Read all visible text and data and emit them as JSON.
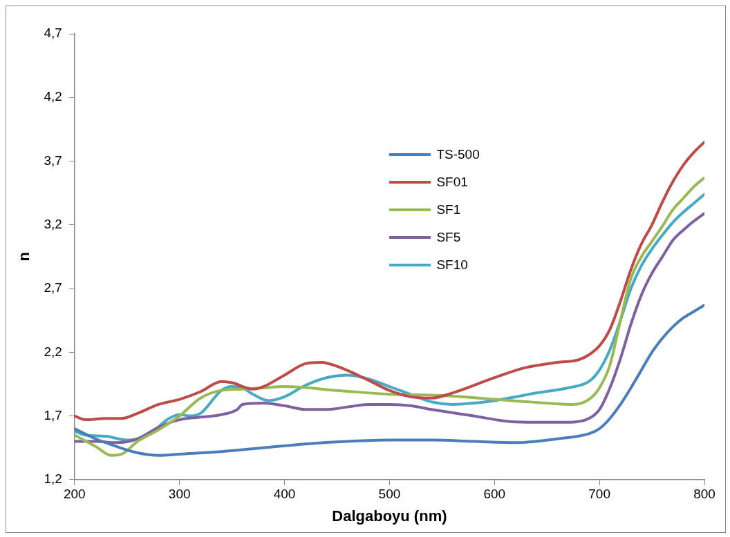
{
  "chart_data": {
    "type": "line",
    "xlabel": "Dalgaboyu (nm)",
    "ylabel": "n",
    "xlim": [
      200,
      800
    ],
    "xticks": [
      200,
      300,
      400,
      500,
      600,
      700,
      800
    ],
    "ylim": [
      1.2,
      4.7
    ],
    "yticks": [
      {
        "value": 1.2,
        "label": "1,2"
      },
      {
        "value": 1.7,
        "label": "1,7"
      },
      {
        "value": 2.2,
        "label": "2,2"
      },
      {
        "value": 2.7,
        "label": "2,7"
      },
      {
        "value": 3.2,
        "label": "3,2"
      },
      {
        "value": 3.7,
        "label": "3,7"
      },
      {
        "value": 4.2,
        "label": "4,2"
      },
      {
        "value": 4.7,
        "label": "4,7"
      }
    ],
    "grid": false,
    "legend": "top right",
    "marker": "none",
    "line_style": "solid",
    "series": [
      {
        "name": "TS-500",
        "color": "#4a7ebb",
        "x": [
          200,
          220,
          240,
          260,
          280,
          300,
          340,
          380,
          420,
          460,
          500,
          540,
          580,
          620,
          660,
          690,
          700,
          710,
          720,
          730,
          740,
          750,
          760,
          770,
          780,
          790,
          800
        ],
        "values": [
          1.6,
          1.52,
          1.46,
          1.41,
          1.39,
          1.4,
          1.42,
          1.45,
          1.48,
          1.5,
          1.51,
          1.51,
          1.5,
          1.49,
          1.52,
          1.56,
          1.6,
          1.68,
          1.79,
          1.92,
          2.06,
          2.2,
          2.31,
          2.4,
          2.47,
          2.52,
          2.57
        ]
      },
      {
        "name": "SF01",
        "color": "#be4b48",
        "x": [
          200,
          210,
          230,
          245,
          260,
          280,
          300,
          320,
          340,
          350,
          370,
          380,
          400,
          420,
          435,
          450,
          480,
          500,
          520,
          540,
          560,
          600,
          630,
          660,
          680,
          690,
          700,
          710,
          720,
          730,
          740,
          750,
          760,
          770,
          780,
          790,
          800
        ],
        "values": [
          1.7,
          1.67,
          1.68,
          1.68,
          1.72,
          1.79,
          1.83,
          1.89,
          1.97,
          1.96,
          1.91,
          1.93,
          2.02,
          2.11,
          2.12,
          2.09,
          1.98,
          1.9,
          1.85,
          1.84,
          1.88,
          2.0,
          2.08,
          2.12,
          2.14,
          2.18,
          2.25,
          2.38,
          2.6,
          2.85,
          3.05,
          3.2,
          3.38,
          3.54,
          3.67,
          3.77,
          3.85
        ]
      },
      {
        "name": "SF1",
        "color": "#98b954",
        "x": [
          200,
          220,
          235,
          245,
          260,
          280,
          300,
          320,
          340,
          360,
          380,
          400,
          450,
          500,
          550,
          600,
          650,
          675,
          690,
          700,
          710,
          720,
          730,
          740,
          750,
          760,
          770,
          780,
          790,
          800
        ],
        "values": [
          1.55,
          1.46,
          1.39,
          1.4,
          1.5,
          1.59,
          1.7,
          1.84,
          1.9,
          1.91,
          1.92,
          1.93,
          1.9,
          1.87,
          1.86,
          1.83,
          1.8,
          1.79,
          1.83,
          1.92,
          2.1,
          2.45,
          2.78,
          2.95,
          3.07,
          3.19,
          3.32,
          3.41,
          3.5,
          3.57
        ]
      },
      {
        "name": "SF5",
        "color": "#7d60a0",
        "x": [
          200,
          220,
          240,
          260,
          280,
          300,
          320,
          340,
          355,
          360,
          380,
          400,
          420,
          440,
          460,
          480,
          500,
          520,
          540,
          580,
          610,
          640,
          670,
          690,
          700,
          710,
          720,
          730,
          740,
          750,
          760,
          770,
          780,
          790,
          800
        ],
        "values": [
          1.5,
          1.5,
          1.49,
          1.52,
          1.61,
          1.67,
          1.69,
          1.71,
          1.75,
          1.79,
          1.8,
          1.78,
          1.75,
          1.75,
          1.77,
          1.79,
          1.79,
          1.78,
          1.75,
          1.7,
          1.66,
          1.65,
          1.65,
          1.68,
          1.75,
          1.92,
          2.15,
          2.42,
          2.65,
          2.82,
          2.95,
          3.08,
          3.16,
          3.23,
          3.29
        ]
      },
      {
        "name": "SF10",
        "color": "#46aac5",
        "x": [
          200,
          210,
          230,
          250,
          270,
          290,
          300,
          310,
          320,
          340,
          350,
          360,
          370,
          385,
          400,
          420,
          440,
          460,
          480,
          500,
          520,
          540,
          560,
          580,
          600,
          640,
          670,
          690,
          700,
          710,
          720,
          730,
          740,
          750,
          760,
          770,
          780,
          790,
          800
        ],
        "values": [
          1.58,
          1.55,
          1.54,
          1.51,
          1.55,
          1.68,
          1.71,
          1.7,
          1.72,
          1.9,
          1.93,
          1.92,
          1.87,
          1.82,
          1.85,
          1.94,
          2.0,
          2.02,
          1.99,
          1.93,
          1.87,
          1.81,
          1.79,
          1.8,
          1.82,
          1.88,
          1.92,
          1.97,
          2.06,
          2.22,
          2.45,
          2.7,
          2.88,
          3.01,
          3.12,
          3.22,
          3.3,
          3.37,
          3.44
        ]
      }
    ]
  }
}
